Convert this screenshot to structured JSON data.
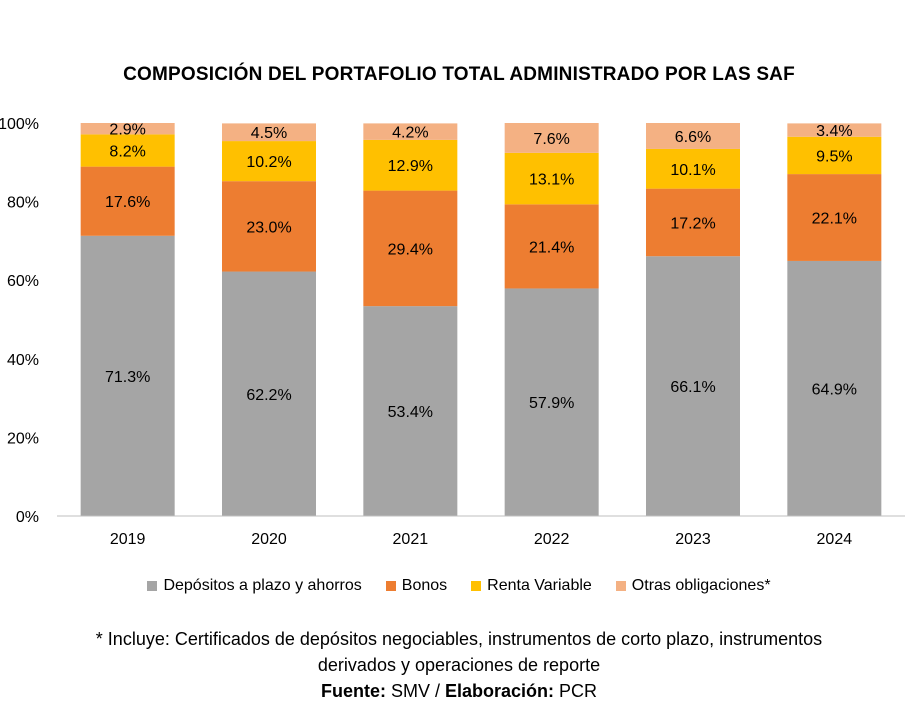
{
  "chart_data": {
    "type": "bar",
    "stacked": true,
    "title": "COMPOSICIÓN DEL PORTAFOLIO TOTAL ADMINISTRADO POR LAS SAF",
    "categories": [
      "2019",
      "2020",
      "2021",
      "2022",
      "2023",
      "2024"
    ],
    "ylim": [
      0,
      100
    ],
    "yticks": [
      "0%",
      "20%",
      "40%",
      "60%",
      "80%",
      "100%"
    ],
    "ytick_values": [
      0,
      20,
      40,
      60,
      80,
      100
    ],
    "grid": false,
    "legend_position": "bottom",
    "series": [
      {
        "name": "Depósitos a plazo y ahorros",
        "color": "#a5a5a5",
        "values": [
          71.3,
          62.2,
          53.4,
          57.9,
          66.1,
          64.9
        ],
        "labels": [
          "71.3%",
          "62.2%",
          "53.4%",
          "57.9%",
          "66.1%",
          "64.9%"
        ]
      },
      {
        "name": "Bonos",
        "color": "#ed7d31",
        "values": [
          17.6,
          23.0,
          29.4,
          21.4,
          17.2,
          22.1
        ],
        "labels": [
          "17.6%",
          "23.0%",
          "29.4%",
          "21.4%",
          "17.2%",
          "22.1%"
        ]
      },
      {
        "name": "Renta Variable",
        "color": "#ffc000",
        "values": [
          8.2,
          10.2,
          12.9,
          13.1,
          10.1,
          9.5
        ],
        "labels": [
          "8.2%",
          "10.2%",
          "12.9%",
          "13.1%",
          "10.1%",
          "9.5%"
        ]
      },
      {
        "name": "Otras obligaciones*",
        "color": "#f4b183",
        "values": [
          2.9,
          4.5,
          4.2,
          7.6,
          6.6,
          3.4
        ],
        "labels": [
          "2.9%",
          "4.5%",
          "4.2%",
          "7.6%",
          "6.6%",
          "3.4%"
        ]
      }
    ]
  },
  "footnote": {
    "line1": "* Incluye: Certificados de depósitos negociables, instrumentos de corto plazo, instrumentos",
    "line2": "derivados y operaciones de reporte",
    "source_label": "Fuente:",
    "source_value": " SMV / ",
    "elab_label": "Elaboración:",
    "elab_value": " PCR"
  }
}
